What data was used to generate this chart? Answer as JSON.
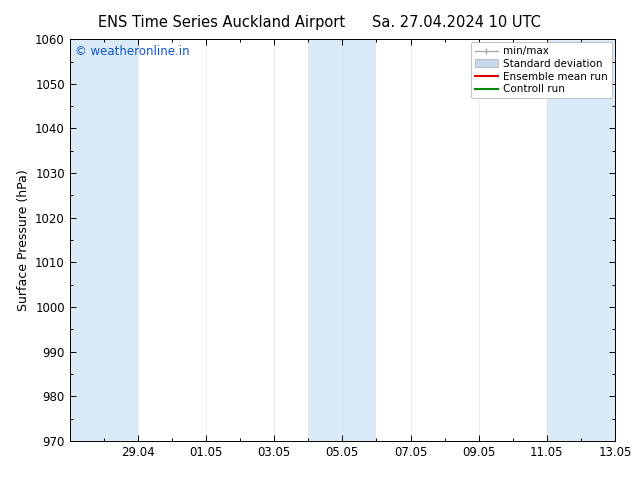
{
  "title_left": "ENS Time Series Auckland Airport",
  "title_right": "Sa. 27.04.2024 10 UTC",
  "ylabel": "Surface Pressure (hPa)",
  "ylim": [
    970,
    1060
  ],
  "yticks": [
    970,
    980,
    990,
    1000,
    1010,
    1020,
    1030,
    1040,
    1050,
    1060
  ],
  "xlim": [
    0,
    16
  ],
  "xtick_labels": [
    "29.04",
    "01.05",
    "03.05",
    "05.05",
    "07.05",
    "09.05",
    "11.05",
    "13.05"
  ],
  "xtick_positions": [
    2,
    4,
    6,
    8,
    10,
    12,
    14,
    16
  ],
  "shaded_intervals": [
    [
      0,
      2
    ],
    [
      7,
      9
    ],
    [
      14,
      16
    ]
  ],
  "band_color": "#daeaf7",
  "watermark": "© weatheronline.in",
  "watermark_color": "#1155cc",
  "legend_minmax_color": "#aaaaaa",
  "legend_std_color": "#c8d8e8",
  "legend_ens_color": "#dd0000",
  "legend_ctrl_color": "#008800",
  "bg_color": "#ffffff",
  "spine_color": "#000000",
  "title_fontsize": 10.5,
  "label_fontsize": 9,
  "tick_fontsize": 8.5,
  "watermark_fontsize": 8.5,
  "legend_fontsize": 7.5
}
